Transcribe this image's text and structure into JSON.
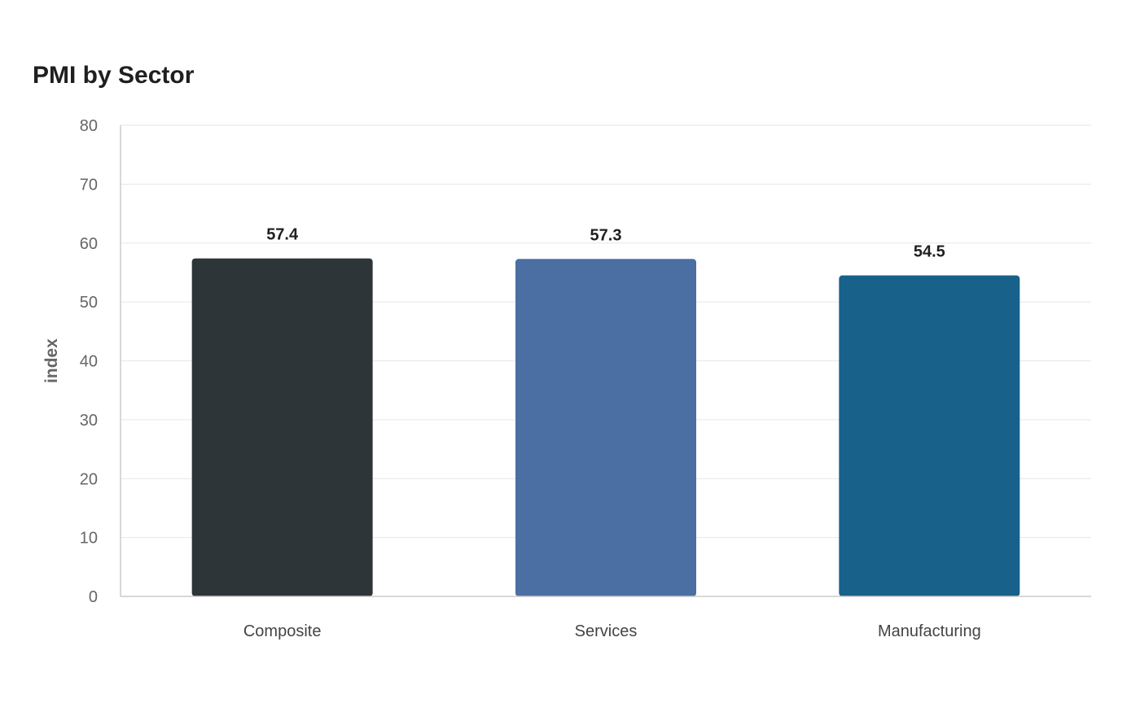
{
  "chart_data": {
    "type": "bar",
    "title": "PMI by Sector",
    "xlabel": "",
    "ylabel": "index",
    "ylim": [
      0,
      80
    ],
    "yticks": [
      0,
      10,
      20,
      30,
      40,
      50,
      60,
      70,
      80
    ],
    "grid": true,
    "legend": "none",
    "categories": [
      "Composite",
      "Services",
      "Manufacturing"
    ],
    "values": [
      57.4,
      57.3,
      54.5
    ],
    "colors": [
      "#2e3538",
      "#4b6fa3",
      "#17618a"
    ]
  }
}
